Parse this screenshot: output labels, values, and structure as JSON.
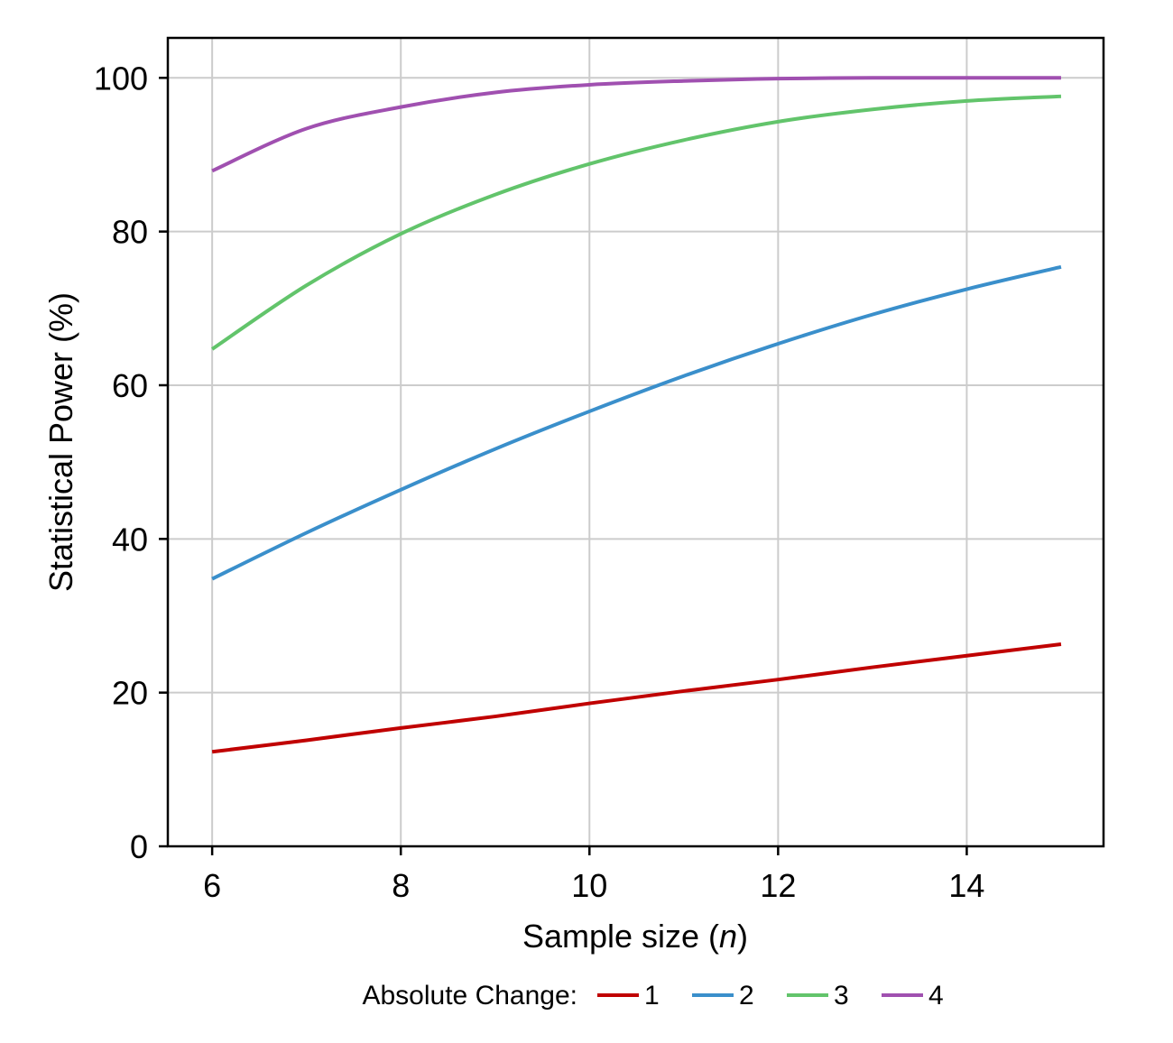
{
  "chart_data": {
    "type": "line",
    "xlabel": "Sample size (",
    "xlabel_var": "n",
    "xlabel_close": ")",
    "ylabel": "Statistical Power (%)",
    "xlim": [
      5.53,
      15.45
    ],
    "ylim": [
      0,
      105.2
    ],
    "xticks": [
      6,
      8,
      10,
      12,
      14
    ],
    "yticks": [
      0,
      20,
      40,
      60,
      80,
      100
    ],
    "grid": true,
    "legend": {
      "title": "Absolute Change:",
      "placement": "bottom-center"
    },
    "x": [
      6,
      7,
      8,
      9,
      10,
      11,
      12,
      13,
      14,
      15
    ],
    "series": [
      {
        "name": "1",
        "color": "#c00000",
        "values": [
          12.3,
          13.8,
          15.4,
          16.9,
          18.6,
          20.2,
          21.7,
          23.3,
          24.8,
          26.3
        ]
      },
      {
        "name": "2",
        "color": "#3a8fcb",
        "values": [
          34.8,
          40.8,
          46.4,
          51.7,
          56.6,
          61.2,
          65.4,
          69.2,
          72.5,
          75.4
        ]
      },
      {
        "name": "3",
        "color": "#62c46b",
        "values": [
          64.7,
          73.0,
          79.7,
          84.8,
          88.8,
          91.9,
          94.3,
          95.9,
          97.0,
          97.6
        ]
      },
      {
        "name": "4",
        "color": "#a050b0",
        "values": [
          87.9,
          93.4,
          96.2,
          98.1,
          99.1,
          99.6,
          99.9,
          100.0,
          100.0,
          100.0
        ]
      }
    ]
  }
}
